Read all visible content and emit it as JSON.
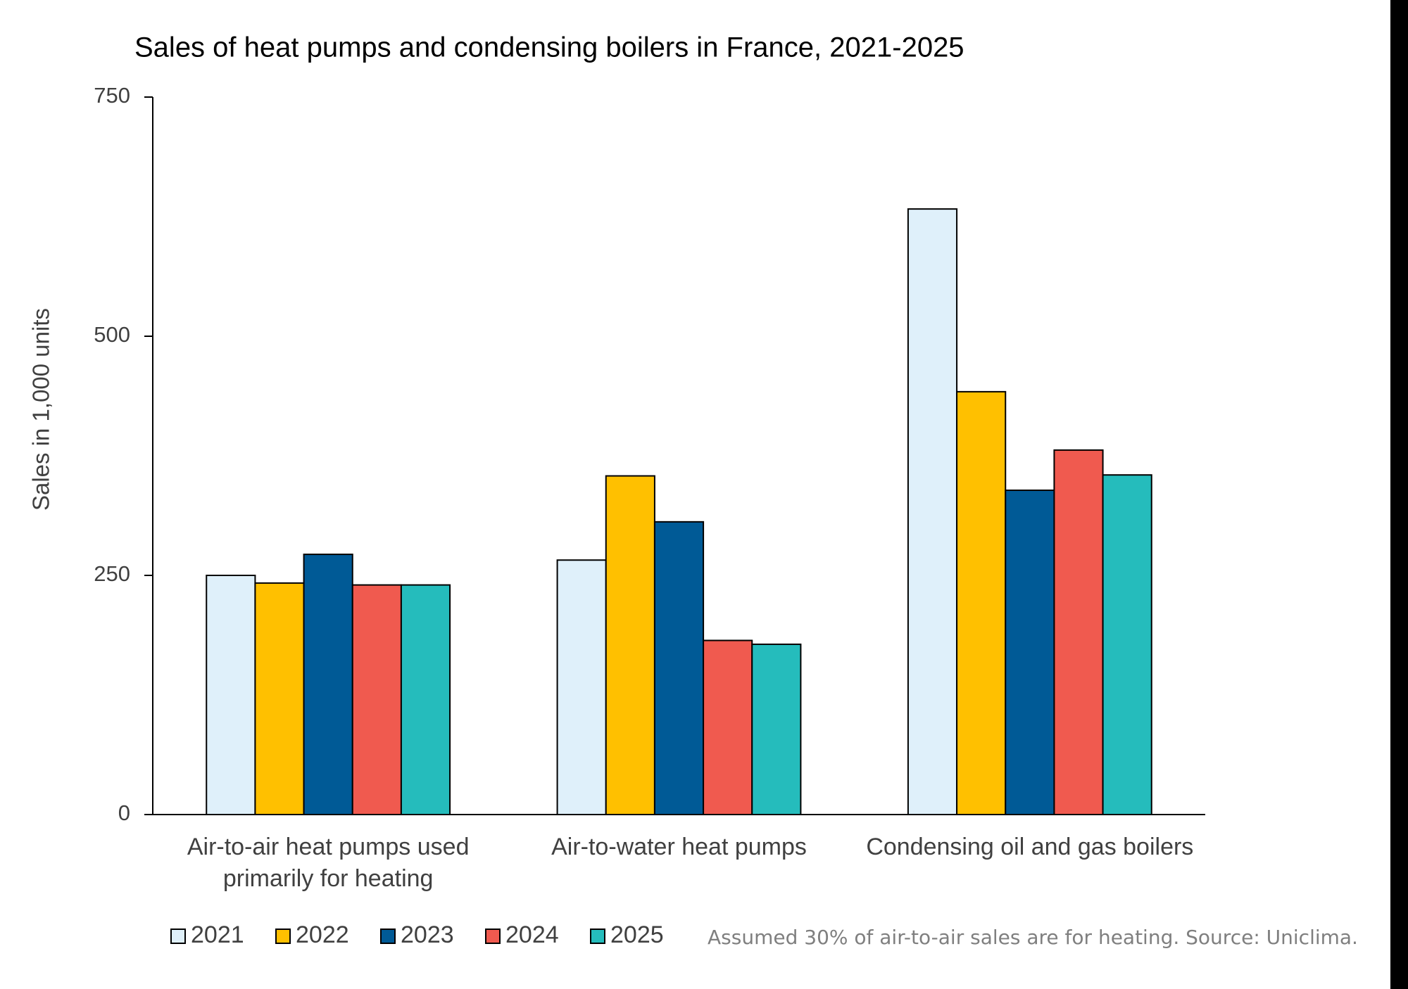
{
  "chart_data": {
    "type": "bar",
    "title": "Sales of heat pumps and condensing boilers in France, 2021-2025",
    "y_label": "Sales in 1,000 units",
    "categories": [
      "Air-to-air heat pumps used primarily for heating",
      "Air-to-water heat pumps",
      "Condensing oil and gas boilers"
    ],
    "series": [
      {
        "name": "2021",
        "color": "#dff0fa",
        "values": [
          250,
          266,
          633
        ]
      },
      {
        "name": "2022",
        "color": "#ffc000",
        "values": [
          242,
          354,
          442
        ]
      },
      {
        "name": "2023",
        "color": "#005a96",
        "values": [
          272,
          306,
          339
        ]
      },
      {
        "name": "2024",
        "color": "#f05a4f",
        "values": [
          240,
          182,
          381
        ]
      },
      {
        "name": "2025",
        "color": "#25bcbc",
        "values": [
          240,
          178,
          355
        ]
      }
    ],
    "ylim": [
      0,
      750
    ],
    "yticks": [
      0,
      250,
      500,
      750
    ],
    "grid": false,
    "legend": "bottom",
    "note": "Assumed 30% of air-to-air sales are for heating. Source: Uniclima."
  }
}
